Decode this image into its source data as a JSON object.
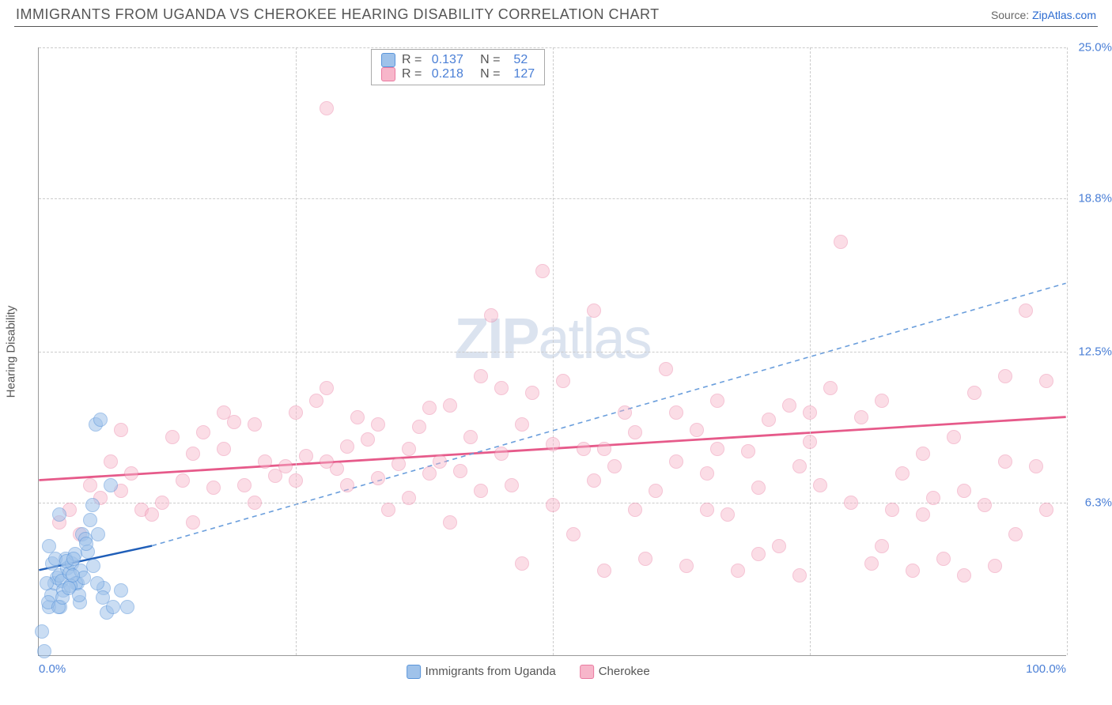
{
  "title": "IMMIGRANTS FROM UGANDA VS CHEROKEE HEARING DISABILITY CORRELATION CHART",
  "source_label": "Source: ",
  "source_link_text": "ZipAtlas.com",
  "ylabel": "Hearing Disability",
  "watermark_zip": "ZIP",
  "watermark_atlas": "atlas",
  "chart": {
    "type": "scatter",
    "xlim": [
      0,
      100
    ],
    "ylim": [
      0,
      25
    ],
    "background_color": "#ffffff",
    "grid_color": "#cccccc",
    "tick_label_color": "#4a7fd6",
    "tick_fontsize": 15,
    "yticks": [
      6.3,
      12.5,
      18.8,
      25.0
    ],
    "ytick_labels": [
      "6.3%",
      "12.5%",
      "18.8%",
      "25.0%"
    ],
    "xticks_grid": [
      25,
      50,
      75,
      100
    ],
    "xtick_left_label": "0.0%",
    "xtick_right_label": "100.0%",
    "marker_radius": 9,
    "marker_border_width": 1.5
  },
  "series": {
    "uganda": {
      "label": "Immigrants from Uganda",
      "fill": "#9fc2ea",
      "border": "#5a95da",
      "fill_opacity": 0.55,
      "R": "0.137",
      "N": "52",
      "trend": {
        "x1": 0,
        "y1": 3.5,
        "x2": 11,
        "y2": 4.5,
        "color": "#1f5eb8",
        "width": 2.5,
        "dash": "none"
      },
      "trend_ext": {
        "x1": 11,
        "y1": 4.5,
        "x2": 100,
        "y2": 15.3,
        "color": "#6a9edc",
        "width": 1.6,
        "dash": "6,5"
      },
      "points": [
        [
          0.3,
          1.0
        ],
        [
          0.5,
          0.2
        ],
        [
          1.0,
          2.0
        ],
        [
          1.2,
          2.5
        ],
        [
          1.5,
          3.0
        ],
        [
          1.8,
          3.2
        ],
        [
          2.0,
          3.3
        ],
        [
          2.2,
          3.1
        ],
        [
          2.4,
          2.7
        ],
        [
          2.6,
          4.0
        ],
        [
          2.8,
          3.6
        ],
        [
          3.0,
          3.4
        ],
        [
          3.2,
          3.8
        ],
        [
          3.5,
          4.2
        ],
        [
          3.8,
          3.0
        ],
        [
          4.0,
          2.2
        ],
        [
          4.2,
          5.0
        ],
        [
          4.5,
          4.8
        ],
        [
          5.0,
          5.6
        ],
        [
          5.2,
          6.2
        ],
        [
          5.5,
          9.5
        ],
        [
          6.0,
          9.7
        ],
        [
          6.3,
          2.8
        ],
        [
          7.0,
          7.0
        ],
        [
          3.6,
          3.0
        ],
        [
          4.1,
          3.5
        ],
        [
          2.1,
          2.0
        ],
        [
          1.3,
          3.8
        ],
        [
          1.0,
          4.5
        ],
        [
          0.8,
          3.0
        ],
        [
          0.9,
          2.2
        ],
        [
          1.6,
          4.0
        ],
        [
          1.9,
          2.0
        ],
        [
          2.3,
          2.4
        ],
        [
          2.7,
          3.9
        ],
        [
          3.1,
          2.9
        ],
        [
          3.4,
          4.0
        ],
        [
          3.9,
          2.5
        ],
        [
          4.4,
          3.2
        ],
        [
          4.8,
          4.3
        ],
        [
          5.3,
          3.7
        ],
        [
          5.7,
          3.0
        ],
        [
          6.2,
          2.4
        ],
        [
          6.6,
          1.8
        ],
        [
          7.2,
          2.0
        ],
        [
          8.0,
          2.7
        ],
        [
          3.3,
          3.3
        ],
        [
          2.9,
          2.8
        ],
        [
          4.6,
          4.6
        ],
        [
          5.8,
          5.0
        ],
        [
          2.0,
          5.8
        ],
        [
          8.6,
          2.0
        ]
      ]
    },
    "cherokee": {
      "label": "Cherokee",
      "fill": "#f7b6ca",
      "border": "#ea7ba1",
      "fill_opacity": 0.45,
      "R": "0.218",
      "N": "127",
      "trend": {
        "x1": 0,
        "y1": 7.2,
        "x2": 100,
        "y2": 9.8,
        "color": "#e65a8a",
        "width": 2.8,
        "dash": "none"
      },
      "points": [
        [
          2,
          5.5
        ],
        [
          3,
          6.0
        ],
        [
          4,
          5.0
        ],
        [
          5,
          7.0
        ],
        [
          6,
          6.5
        ],
        [
          7,
          8.0
        ],
        [
          8,
          6.8
        ],
        [
          9,
          7.5
        ],
        [
          10,
          6.0
        ],
        [
          11,
          5.8
        ],
        [
          12,
          6.3
        ],
        [
          13,
          9.0
        ],
        [
          14,
          7.2
        ],
        [
          15,
          8.3
        ],
        [
          16,
          9.2
        ],
        [
          17,
          6.9
        ],
        [
          18,
          8.5
        ],
        [
          19,
          9.6
        ],
        [
          20,
          7.0
        ],
        [
          21,
          6.3
        ],
        [
          22,
          8.0
        ],
        [
          23,
          7.4
        ],
        [
          24,
          7.8
        ],
        [
          25,
          10.0
        ],
        [
          26,
          8.2
        ],
        [
          27,
          10.5
        ],
        [
          28,
          11.0
        ],
        [
          29,
          7.7
        ],
        [
          30,
          8.6
        ],
        [
          31,
          9.8
        ],
        [
          32,
          8.9
        ],
        [
          33,
          7.3
        ],
        [
          34,
          6.0
        ],
        [
          35,
          7.9
        ],
        [
          36,
          6.5
        ],
        [
          37,
          9.4
        ],
        [
          38,
          10.2
        ],
        [
          39,
          8.0
        ],
        [
          40,
          5.5
        ],
        [
          41,
          7.6
        ],
        [
          42,
          9.0
        ],
        [
          43,
          11.5
        ],
        [
          44,
          14.0
        ],
        [
          45,
          8.3
        ],
        [
          46,
          7.0
        ],
        [
          47,
          3.8
        ],
        [
          48,
          10.8
        ],
        [
          49,
          15.8
        ],
        [
          50,
          6.2
        ],
        [
          51,
          11.3
        ],
        [
          52,
          5.0
        ],
        [
          53,
          8.5
        ],
        [
          54,
          14.2
        ],
        [
          55,
          3.5
        ],
        [
          56,
          7.8
        ],
        [
          57,
          10.0
        ],
        [
          58,
          9.2
        ],
        [
          59,
          4.0
        ],
        [
          60,
          6.8
        ],
        [
          61,
          11.8
        ],
        [
          62,
          8.0
        ],
        [
          63,
          3.7
        ],
        [
          64,
          9.3
        ],
        [
          65,
          7.5
        ],
        [
          66,
          10.5
        ],
        [
          67,
          5.8
        ],
        [
          68,
          3.5
        ],
        [
          69,
          8.4
        ],
        [
          70,
          6.9
        ],
        [
          71,
          9.7
        ],
        [
          72,
          4.5
        ],
        [
          73,
          10.3
        ],
        [
          74,
          3.3
        ],
        [
          75,
          8.8
        ],
        [
          76,
          7.0
        ],
        [
          77,
          11.0
        ],
        [
          78,
          17.0
        ],
        [
          79,
          6.3
        ],
        [
          80,
          9.8
        ],
        [
          81,
          3.8
        ],
        [
          82,
          10.5
        ],
        [
          83,
          6.0
        ],
        [
          84,
          7.5
        ],
        [
          85,
          3.5
        ],
        [
          86,
          5.8
        ],
        [
          87,
          6.5
        ],
        [
          88,
          4.0
        ],
        [
          89,
          9.0
        ],
        [
          90,
          3.3
        ],
        [
          91,
          10.8
        ],
        [
          92,
          6.2
        ],
        [
          93,
          3.7
        ],
        [
          94,
          11.5
        ],
        [
          95,
          5.0
        ],
        [
          96,
          14.2
        ],
        [
          97,
          7.8
        ],
        [
          98,
          6.0
        ],
        [
          28,
          22.5
        ],
        [
          8,
          9.3
        ],
        [
          15,
          5.5
        ],
        [
          18,
          10.0
        ],
        [
          21,
          9.5
        ],
        [
          25,
          7.2
        ],
        [
          28,
          8.0
        ],
        [
          30,
          7.0
        ],
        [
          33,
          9.5
        ],
        [
          36,
          8.5
        ],
        [
          40,
          10.3
        ],
        [
          43,
          6.8
        ],
        [
          47,
          9.5
        ],
        [
          50,
          8.7
        ],
        [
          54,
          7.2
        ],
        [
          58,
          6.0
        ],
        [
          62,
          10.0
        ],
        [
          66,
          8.5
        ],
        [
          70,
          4.2
        ],
        [
          74,
          7.8
        ],
        [
          82,
          4.5
        ],
        [
          86,
          8.3
        ],
        [
          90,
          6.8
        ],
        [
          94,
          8.0
        ],
        [
          98,
          11.3
        ],
        [
          38,
          7.5
        ],
        [
          45,
          11.0
        ],
        [
          55,
          8.5
        ],
        [
          65,
          6.0
        ],
        [
          75,
          10.0
        ]
      ]
    }
  },
  "legend_stats_labels": {
    "R": "R = ",
    "N": "   N =  "
  }
}
